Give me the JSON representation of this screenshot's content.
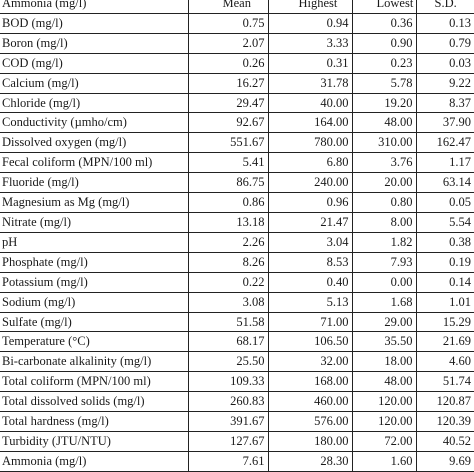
{
  "table": {
    "headers": [
      "Ammonia (mg/l)",
      "Mean",
      "Highest",
      "Lowest",
      "S.D."
    ],
    "rows": [
      [
        "BOD (mg/l)",
        "0.75",
        "0.94",
        "0.36",
        "0.13"
      ],
      [
        "Boron (mg/l)",
        "2.07",
        "3.33",
        "0.90",
        "0.79"
      ],
      [
        "COD (mg/l)",
        "0.26",
        "0.31",
        "0.23",
        "0.03"
      ],
      [
        "Calcium (mg/l)",
        "16.27",
        "31.78",
        "5.78",
        "9.22"
      ],
      [
        "Chloride (mg/l)",
        "29.47",
        "40.00",
        "19.20",
        "8.37"
      ],
      [
        "Conductivity (µmho/cm)",
        "92.67",
        "164.00",
        "48.00",
        "37.90"
      ],
      [
        "Dissolved oxygen (mg/l)",
        "551.67",
        "780.00",
        "310.00",
        "162.47"
      ],
      [
        "Fecal coliform (MPN/100 ml)",
        "5.41",
        "6.80",
        "3.76",
        "1.17"
      ],
      [
        "Fluoride (mg/l)",
        "86.75",
        "240.00",
        "20.00",
        "63.14"
      ],
      [
        "Magnesium as Mg (mg/l)",
        "0.86",
        "0.96",
        "0.80",
        "0.05"
      ],
      [
        "Nitrate (mg/l)",
        "13.18",
        "21.47",
        "8.00",
        "5.54"
      ],
      [
        "pH",
        "2.26",
        "3.04",
        "1.82",
        "0.38"
      ],
      [
        "Phosphate (mg/l)",
        "8.26",
        "8.53",
        "7.93",
        "0.19"
      ],
      [
        "Potassium (mg/l)",
        "0.22",
        "0.40",
        "0.00",
        "0.14"
      ],
      [
        "Sodium (mg/l)",
        "3.08",
        "5.13",
        "1.68",
        "1.01"
      ],
      [
        "Sulfate (mg/l)",
        "51.58",
        "71.00",
        "29.00",
        "15.29"
      ],
      [
        "Temperature (°C)",
        "68.17",
        "106.50",
        "35.50",
        "21.69"
      ],
      [
        "Bi-carbonate alkalinity (mg/l)",
        "25.50",
        "32.00",
        "18.00",
        "4.60"
      ],
      [
        "Total coliform (MPN/100 ml)",
        "109.33",
        "168.00",
        "48.00",
        "51.74"
      ],
      [
        "Total dissolved solids (mg/l)",
        "260.83",
        "460.00",
        "120.00",
        "120.87"
      ],
      [
        "Total hardness (mg/l)",
        "391.67",
        "576.00",
        "120.00",
        "120.39"
      ],
      [
        "Turbidity (JTU/NTU)",
        "127.67",
        "180.00",
        "72.00",
        "40.52"
      ],
      [
        "Ammonia (mg/l)",
        "7.61",
        "28.30",
        "1.60",
        "9.69"
      ]
    ]
  }
}
